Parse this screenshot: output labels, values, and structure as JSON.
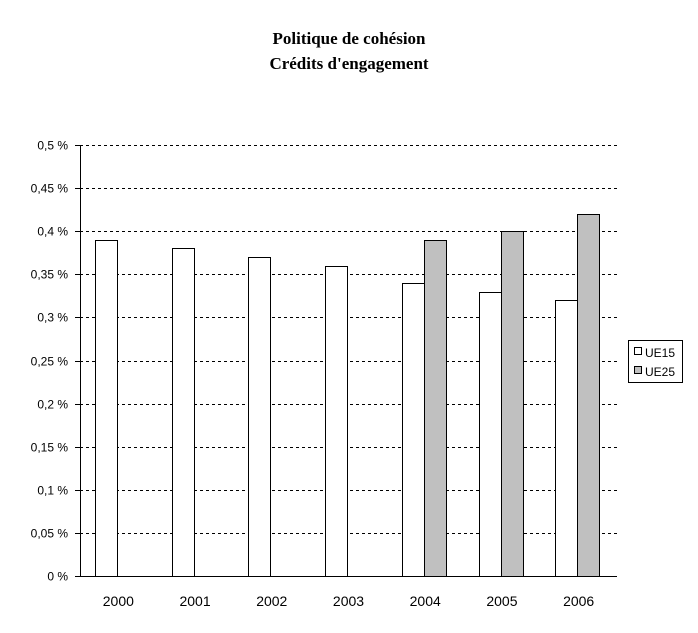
{
  "chart_data": {
    "type": "bar",
    "title": "Politique de cohésion",
    "subtitle": "Crédits d'engagement",
    "categories": [
      "2000",
      "2001",
      "2002",
      "2003",
      "2004",
      "2005",
      "2006"
    ],
    "series": [
      {
        "name": "UE15",
        "color": "#ffffff",
        "values": [
          0.39,
          0.38,
          0.37,
          0.36,
          0.34,
          0.33,
          0.32
        ]
      },
      {
        "name": "UE25",
        "color": "#c0c0c0",
        "values": [
          null,
          null,
          null,
          null,
          0.39,
          0.4,
          0.42
        ]
      }
    ],
    "ylim": [
      0,
      0.5
    ],
    "yticks": [
      "0 %",
      "0,05 %",
      "0,1 %",
      "0,15 %",
      "0,2 %",
      "0,25 %",
      "0,3 %",
      "0,35 %",
      "0,4 %",
      "0,45 %",
      "0,5 %"
    ],
    "grid": "horizontal dashed",
    "legend_position": "right"
  }
}
